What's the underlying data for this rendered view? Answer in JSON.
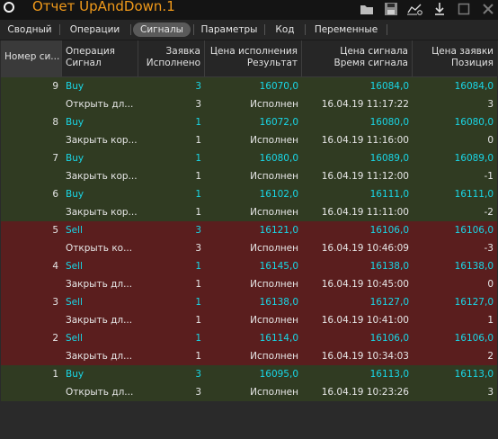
{
  "window": {
    "title": "Отчет UpAndDown.1"
  },
  "tabs": [
    {
      "label": "Сводный"
    },
    {
      "label": "Операции"
    },
    {
      "label": "Сигналы"
    },
    {
      "label": "Параметры"
    },
    {
      "label": "Код"
    },
    {
      "label": "Переменные"
    }
  ],
  "active_tab": "Сигналы",
  "columns": {
    "c0": "Номер си...",
    "c1a": "Операция",
    "c1b": "Сигнал",
    "c2a": "Заявка",
    "c2b": "Исполнено",
    "c3a": "Цена исполнения",
    "c3b": "Результат",
    "c4a": "Цена сигнала",
    "c4b": "Время сигнала",
    "c5a": "Цена заявки",
    "c5b": "Позиция"
  },
  "groups": [
    {
      "num": "9",
      "op": "Buy",
      "qty": "3",
      "exec_price": "16070,0",
      "sig_price": "16084,0",
      "order_price": "16084,0",
      "sig": "Открыть дл...",
      "filled": "3",
      "result": "Исполнен",
      "time": "16.04.19 11:17:22",
      "position": "3",
      "side": "buy"
    },
    {
      "num": "8",
      "op": "Buy",
      "qty": "1",
      "exec_price": "16072,0",
      "sig_price": "16080,0",
      "order_price": "16080,0",
      "sig": "Закрыть кор...",
      "filled": "1",
      "result": "Исполнен",
      "time": "16.04.19 11:16:00",
      "position": "0",
      "side": "buy"
    },
    {
      "num": "7",
      "op": "Buy",
      "qty": "1",
      "exec_price": "16080,0",
      "sig_price": "16089,0",
      "order_price": "16089,0",
      "sig": "Закрыть кор...",
      "filled": "1",
      "result": "Исполнен",
      "time": "16.04.19 11:12:00",
      "position": "-1",
      "side": "buy"
    },
    {
      "num": "6",
      "op": "Buy",
      "qty": "1",
      "exec_price": "16102,0",
      "sig_price": "16111,0",
      "order_price": "16111,0",
      "sig": "Закрыть кор...",
      "filled": "1",
      "result": "Исполнен",
      "time": "16.04.19 11:11:00",
      "position": "-2",
      "side": "buy"
    },
    {
      "num": "5",
      "op": "Sell",
      "qty": "3",
      "exec_price": "16121,0",
      "sig_price": "16106,0",
      "order_price": "16106,0",
      "sig": "Открыть ко...",
      "filled": "3",
      "result": "Исполнен",
      "time": "16.04.19 10:46:09",
      "position": "-3",
      "side": "sell"
    },
    {
      "num": "4",
      "op": "Sell",
      "qty": "1",
      "exec_price": "16145,0",
      "sig_price": "16138,0",
      "order_price": "16138,0",
      "sig": "Закрыть дл...",
      "filled": "1",
      "result": "Исполнен",
      "time": "16.04.19 10:45:00",
      "position": "0",
      "side": "sell"
    },
    {
      "num": "3",
      "op": "Sell",
      "qty": "1",
      "exec_price": "16138,0",
      "sig_price": "16127,0",
      "order_price": "16127,0",
      "sig": "Закрыть дл...",
      "filled": "1",
      "result": "Исполнен",
      "time": "16.04.19 10:41:00",
      "position": "1",
      "side": "sell"
    },
    {
      "num": "2",
      "op": "Sell",
      "qty": "1",
      "exec_price": "16114,0",
      "sig_price": "16106,0",
      "order_price": "16106,0",
      "sig": "Закрыть дл...",
      "filled": "1",
      "result": "Исполнен",
      "time": "16.04.19 10:34:03",
      "position": "2",
      "side": "sell"
    },
    {
      "num": "1",
      "op": "Buy",
      "qty": "3",
      "exec_price": "16095,0",
      "sig_price": "16113,0",
      "order_price": "16113,0",
      "sig": "Открыть дл...",
      "filled": "3",
      "result": "Исполнен",
      "time": "16.04.19 10:23:26",
      "position": "3",
      "side": "buy"
    }
  ],
  "colors": {
    "accent_title": "#f19a1a",
    "cyan": "#19d6e6",
    "buy_bg": "#303b22",
    "sell_bg": "#5a1e1e"
  },
  "icons": [
    "circle-icon",
    "folder-icon",
    "save-icon",
    "chart-settings-icon",
    "download-icon",
    "window-icon",
    "close-icon"
  ]
}
